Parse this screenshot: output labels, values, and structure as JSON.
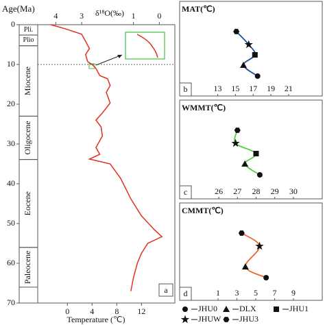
{
  "chart_data": [
    {
      "type": "line",
      "label": "a",
      "ylabel": "Age(Ma)",
      "xlabel": "δ¹⁸O(‰)",
      "x2label": "Temperature (℃)",
      "xlim": [
        4.7,
        -0.6
      ],
      "xticks": [
        4,
        3,
        1,
        0
      ],
      "x2lim": [
        -4.8,
        17.4
      ],
      "x2ticks": [
        0,
        4,
        8,
        12
      ],
      "ylim": [
        0,
        70
      ],
      "yticks": [
        0,
        10,
        20,
        30,
        40,
        50,
        60,
        70
      ],
      "color": "#e03020",
      "marker_age": 10,
      "epochs": [
        {
          "label": "Pli.",
          "start": 0,
          "end": 2.6
        },
        {
          "label": "Plio",
          "start": 2.6,
          "end": 5.3
        },
        {
          "label": "Miocene",
          "start": 5.3,
          "end": 23
        },
        {
          "label": "Oligocene",
          "start": 23,
          "end": 33.9
        },
        {
          "label": "Eocene",
          "start": 33.9,
          "end": 56
        },
        {
          "label": "Paleocene",
          "start": 56,
          "end": 66
        }
      ],
      "y": [
        0,
        1,
        2.4,
        6,
        7.5,
        9.3,
        10,
        11,
        12.8,
        13.6,
        15.3,
        17,
        19.7,
        22.2,
        24,
        25.7,
        28,
        30.9,
        32.6,
        33.8,
        35,
        38.6,
        43.8,
        48,
        51.5,
        53.3,
        55,
        57.6,
        60,
        63.6,
        67
      ],
      "values": [
        4.2,
        3.65,
        3.0,
        2.7,
        2.85,
        2.77,
        2.6,
        2.45,
        2.3,
        2.0,
        1.9,
        2.05,
        1.9,
        2.2,
        2.45,
        2.25,
        2.2,
        2.45,
        2.3,
        2.7,
        1.9,
        1.5,
        1.1,
        0.7,
        0.2,
        -0.1,
        0.45,
        0.7,
        0.85,
        1.0,
        1.1
      ]
    },
    {
      "type": "scatter",
      "label": "b",
      "title": "MAT(℃)",
      "color": "#1f4fa0",
      "xlim": [
        8.7,
        24.8
      ],
      "xticks": [
        13,
        15,
        17,
        19,
        21
      ],
      "sites": [
        "JHU3",
        "JHUW",
        "JHU1",
        "DLX",
        "JHU0"
      ],
      "values": [
        15.1,
        16.5,
        17.2,
        15.9,
        17.5
      ]
    },
    {
      "type": "scatter",
      "label": "c",
      "title": "WMMT(℃)",
      "color": "#4fd040",
      "xlim": [
        23.9,
        31.55
      ],
      "xticks": [
        26,
        27,
        28,
        29,
        30
      ],
      "sites": [
        "JHU3",
        "JHUW",
        "JHU1",
        "DLX",
        "JHU0"
      ],
      "values": [
        27.0,
        26.9,
        28.0,
        27.4,
        28.2
      ]
    },
    {
      "type": "scatter",
      "label": "d",
      "title": "CMMT(℃)",
      "color": "#e8692a",
      "xlim": [
        -3.07,
        12.05
      ],
      "xticks": [
        1,
        3,
        5,
        7,
        9
      ],
      "sites": [
        "JHU3",
        "JHUW",
        "DLX",
        "JHU0"
      ],
      "values": [
        3.5,
        5.4,
        3.9,
        6.1
      ]
    }
  ],
  "legend": [
    {
      "name": "JHU0",
      "marker": "circle"
    },
    {
      "name": "DLX",
      "marker": "triangle"
    },
    {
      "name": "JHU1",
      "marker": "square"
    },
    {
      "name": "JHUW",
      "marker": "star"
    },
    {
      "name": "JHU3",
      "marker": "hexagon"
    }
  ]
}
